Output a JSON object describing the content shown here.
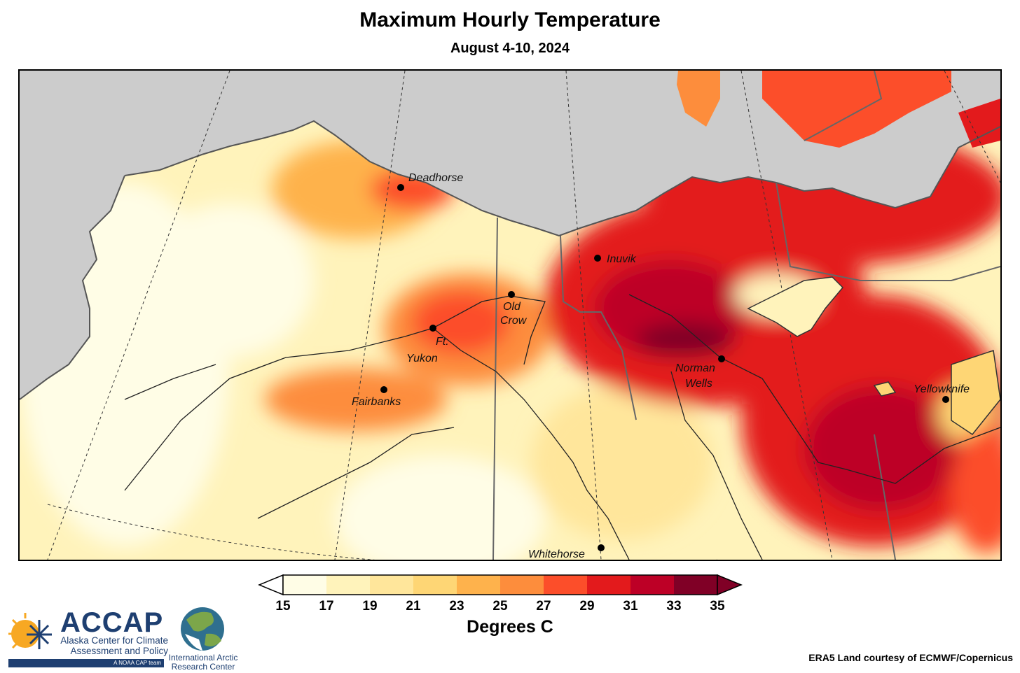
{
  "title": "Maximum Hourly Temperature",
  "subtitle": "August 4-10, 2024",
  "places": [
    {
      "name": "Deadhorse"
    },
    {
      "name": "Inuvik"
    },
    {
      "name": "Old Crow"
    },
    {
      "name": "Ft. Yukon"
    },
    {
      "name": "Fairbanks"
    },
    {
      "name": "Norman Wells"
    },
    {
      "name": "Yellowknife"
    },
    {
      "name": "Whitehorse"
    }
  ],
  "legend": {
    "title": "Degrees C",
    "ticks": [
      "15",
      "17",
      "19",
      "21",
      "23",
      "25",
      "27",
      "29",
      "31",
      "33",
      "35"
    ],
    "bins": [
      {
        "range": [
          15,
          17
        ],
        "color": "#fffde6"
      },
      {
        "range": [
          17,
          19
        ],
        "color": "#fff3bb"
      },
      {
        "range": [
          19,
          21
        ],
        "color": "#ffe69b"
      },
      {
        "range": [
          21,
          23
        ],
        "color": "#fed675"
      },
      {
        "range": [
          23,
          25
        ],
        "color": "#feb24c"
      },
      {
        "range": [
          25,
          27
        ],
        "color": "#fd8d3c"
      },
      {
        "range": [
          27,
          29
        ],
        "color": "#fc4e2a"
      },
      {
        "range": [
          29,
          31
        ],
        "color": "#e31a1c"
      },
      {
        "range": [
          31,
          33
        ],
        "color": "#bd0026"
      },
      {
        "range": [
          33,
          35
        ],
        "color": "#800026"
      }
    ],
    "under_color": "#ffffff",
    "over_color": "#800026"
  },
  "logos": {
    "accap_name": "ACCAP",
    "accap_full": "Alaska Center for Climate Assessment and Policy",
    "accap_tag": "A NOAA CAP team",
    "iarc_name": "International Arctic Research Center"
  },
  "credit": "ERA5 Land courtesy of ECMWF/Copernicus",
  "colors": {
    "ocean": "#cccccc",
    "coast": "#555555",
    "border": "#666666",
    "river": "#222222"
  }
}
